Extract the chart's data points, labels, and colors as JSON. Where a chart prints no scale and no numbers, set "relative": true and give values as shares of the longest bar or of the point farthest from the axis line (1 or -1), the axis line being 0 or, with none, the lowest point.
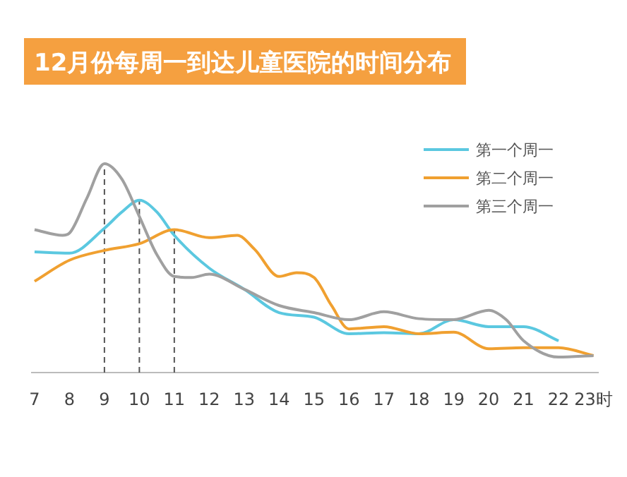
{
  "chart_data": {
    "type": "line",
    "title": "12月份每周一到达儿童医院的时间分布",
    "relative": true,
    "xlim": [
      6.9,
      23.15
    ],
    "xticks": [
      7,
      8,
      9,
      10,
      11,
      12,
      13,
      14,
      15,
      16,
      17,
      18,
      19,
      20,
      21,
      22,
      {
        "value": 23,
        "label": "23时"
      }
    ],
    "legend": "top right",
    "marker": "none",
    "line_style": "solid",
    "ref_lines": [
      {
        "axis": "x",
        "value": 9,
        "line_style": "dashed",
        "color": "#555555"
      },
      {
        "axis": "x",
        "value": 10,
        "line_style": "dashed",
        "color": "#555555"
      },
      {
        "axis": "x",
        "value": 11,
        "line_style": "dashed",
        "color": "#555555"
      }
    ],
    "series": [
      {
        "name": "第一个周一",
        "color": "#5bc8e0",
        "x": [
          7,
          8,
          9,
          9.5,
          10,
          10.5,
          11,
          12,
          13,
          14,
          15,
          16,
          17,
          18,
          19,
          20,
          21,
          22
        ],
        "values": [
          0.578,
          0.572,
          0.691,
          0.769,
          0.825,
          0.769,
          0.657,
          0.5,
          0.399,
          0.287,
          0.265,
          0.186,
          0.191,
          0.186,
          0.253,
          0.22,
          0.22,
          0.152
        ]
      },
      {
        "name": "第二个周一",
        "color": "#f0a030",
        "x": [
          7,
          8,
          9,
          10,
          11,
          12,
          12.8,
          13.3,
          14,
          14.5,
          15,
          15.5,
          16,
          17,
          18,
          19,
          20,
          21,
          22,
          23
        ],
        "values": [
          0.437,
          0.538,
          0.585,
          0.617,
          0.684,
          0.646,
          0.657,
          0.59,
          0.46,
          0.478,
          0.455,
          0.321,
          0.209,
          0.22,
          0.186,
          0.193,
          0.114,
          0.119,
          0.119,
          0.081
        ]
      },
      {
        "name": "第三个周一",
        "color": "#a0a0a0",
        "x": [
          7,
          7.8,
          8,
          8.5,
          9,
          9.5,
          10,
          10.5,
          11,
          11.5,
          12,
          13,
          14,
          15,
          16,
          17,
          18,
          19,
          20,
          20.5,
          21,
          22,
          23
        ],
        "values": [
          0.684,
          0.657,
          0.668,
          0.836,
          1.0,
          0.926,
          0.747,
          0.565,
          0.46,
          0.455,
          0.471,
          0.399,
          0.321,
          0.287,
          0.253,
          0.291,
          0.258,
          0.253,
          0.298,
          0.253,
          0.152,
          0.074,
          0.081
        ]
      }
    ]
  }
}
